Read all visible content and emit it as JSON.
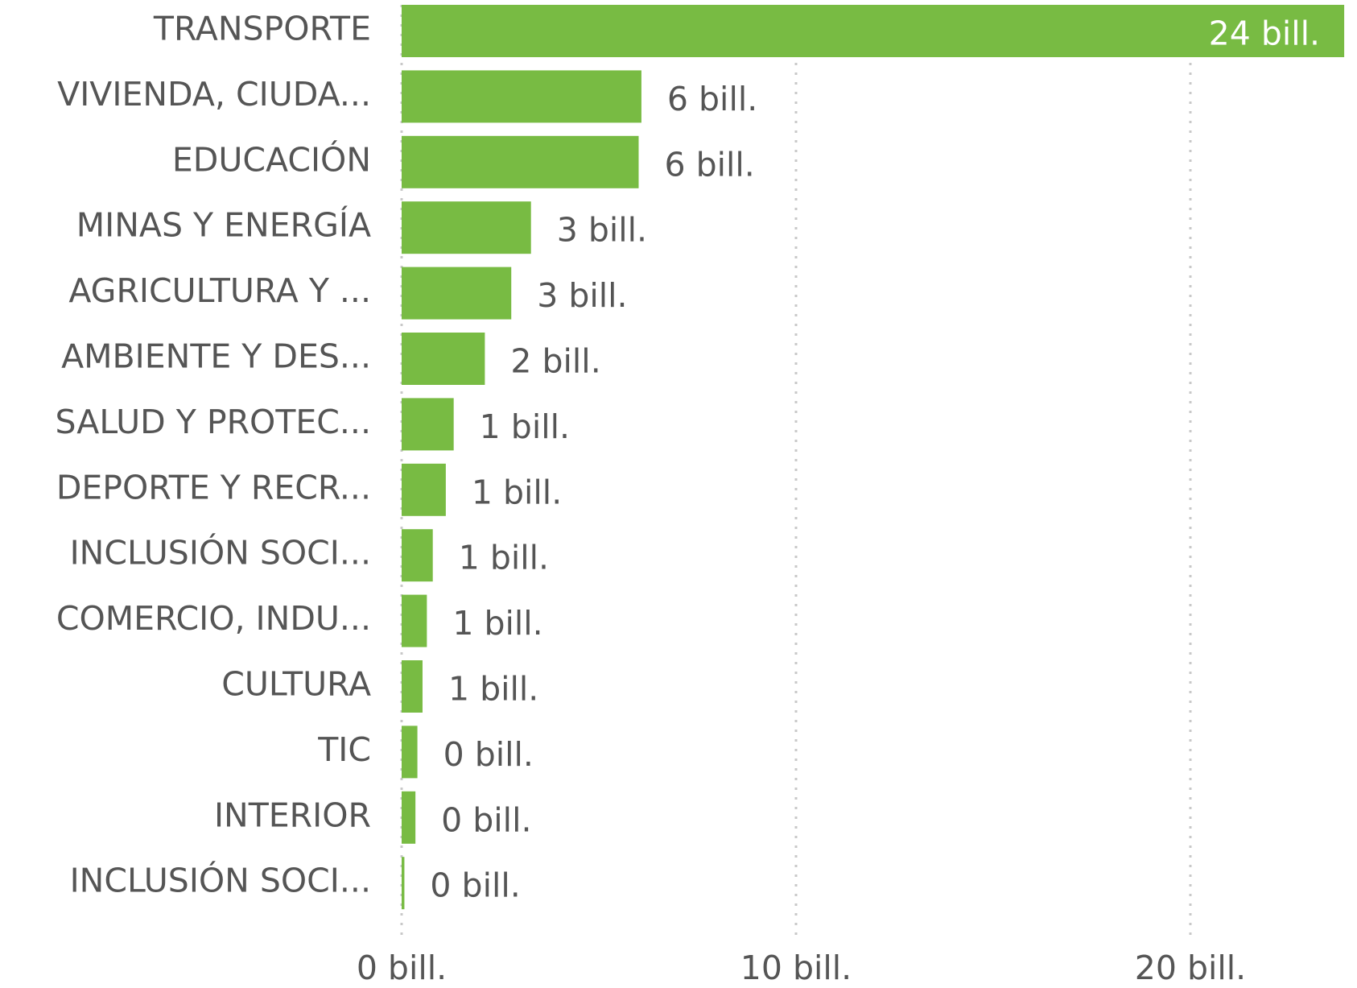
{
  "chart_data": {
    "type": "bar",
    "orientation": "horizontal",
    "categories": [
      "TRANSPORTE",
      "VIVIENDA, CIUDA...",
      "EDUCACIÓN",
      "MINAS Y ENERGÍA",
      "AGRICULTURA Y ...",
      "AMBIENTE Y DES...",
      "SALUD Y PROTEC...",
      "DEPORTE Y RECR...",
      "INCLUSIÓN SOCI...",
      "COMERCIO, INDU...",
      "CULTURA",
      "TIC",
      "INTERIOR",
      "INCLUSIÓN SOCI..."
    ],
    "values": [
      23.9,
      6.08,
      6.01,
      3.28,
      2.78,
      2.11,
      1.32,
      1.12,
      0.79,
      0.64,
      0.53,
      0.4,
      0.35,
      0.07
    ],
    "value_labels": [
      "24 bill.",
      "6 bill.",
      "6 bill.",
      "3 bill.",
      "3 bill.",
      "2 bill.",
      "1 bill.",
      "1 bill.",
      "1 bill.",
      "1 bill.",
      "1 bill.",
      "0 bill.",
      "0 bill.",
      "0 bill."
    ],
    "color": "#78bb43",
    "xlim": [
      0,
      24
    ],
    "xticks": [
      {
        "value": 0,
        "label": "0 bill."
      },
      {
        "value": 10,
        "label": "10 bill."
      },
      {
        "value": 20,
        "label": "20 bill."
      }
    ],
    "grid": true
  }
}
